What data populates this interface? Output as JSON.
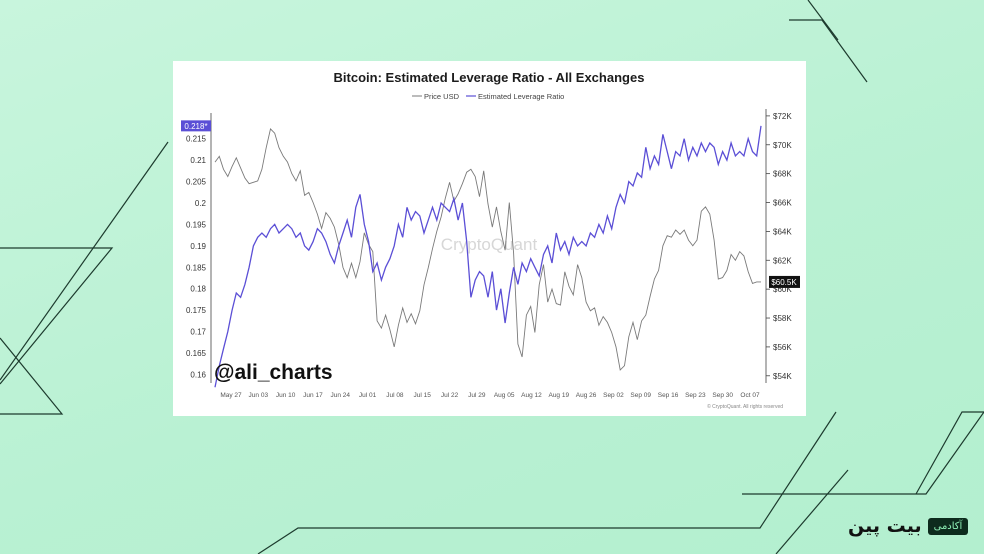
{
  "chart_data": {
    "type": "line",
    "title": "Bitcoin: Estimated Leverage Ratio - All Exchanges",
    "legend": [
      "Price USD",
      "Estimated Leverage Ratio"
    ],
    "legend_position": "top-center",
    "x_labels": [
      "May 27",
      "Jun 03",
      "Jun 10",
      "Jun 17",
      "Jun 24",
      "Jul 01",
      "Jul 08",
      "Jul 15",
      "Jul 22",
      "Jul 29",
      "Aug 05",
      "Aug 12",
      "Aug 19",
      "Aug 26",
      "Sep 02",
      "Sep 09",
      "Sep 16",
      "Sep 23",
      "Sep 30",
      "Oct 07"
    ],
    "y_left": {
      "ticks": [
        "0.215",
        "0.21",
        "0.205",
        "0.2",
        "0.195",
        "0.19",
        "0.185",
        "0.18",
        "0.175",
        "0.17",
        "0.165",
        "0.16"
      ],
      "range": [
        0.158,
        0.221
      ],
      "current_label": "0.218*",
      "current_value": 0.218
    },
    "y_right": {
      "ticks": [
        "$72K",
        "$70K",
        "$68K",
        "$66K",
        "$64K",
        "$62K",
        "$60K",
        "$58K",
        "$56K",
        "$54K"
      ],
      "range": [
        53500,
        72200
      ],
      "current_label": "$60.5K",
      "current_value": 60500
    },
    "grid": false,
    "series": [
      {
        "name": "Estimated Leverage Ratio",
        "color": "#5b4fd6",
        "axis": "left",
        "values": [
          0.157,
          0.162,
          0.166,
          0.17,
          0.175,
          0.179,
          0.178,
          0.181,
          0.185,
          0.19,
          0.192,
          0.193,
          0.192,
          0.194,
          0.195,
          0.193,
          0.194,
          0.195,
          0.194,
          0.192,
          0.193,
          0.19,
          0.189,
          0.191,
          0.194,
          0.193,
          0.191,
          0.188,
          0.186,
          0.19,
          0.193,
          0.196,
          0.192,
          0.199,
          0.202,
          0.195,
          0.191,
          0.184,
          0.186,
          0.182,
          0.185,
          0.187,
          0.19,
          0.195,
          0.192,
          0.199,
          0.196,
          0.198,
          0.197,
          0.193,
          0.196,
          0.199,
          0.196,
          0.2,
          0.199,
          0.198,
          0.201,
          0.196,
          0.2,
          0.191,
          0.178,
          0.182,
          0.184,
          0.183,
          0.178,
          0.184,
          0.175,
          0.18,
          0.172,
          0.179,
          0.185,
          0.181,
          0.186,
          0.184,
          0.187,
          0.185,
          0.183,
          0.188,
          0.19,
          0.186,
          0.193,
          0.189,
          0.191,
          0.188,
          0.192,
          0.19,
          0.191,
          0.19,
          0.193,
          0.192,
          0.195,
          0.193,
          0.197,
          0.194,
          0.199,
          0.202,
          0.2,
          0.205,
          0.204,
          0.207,
          0.206,
          0.213,
          0.208,
          0.211,
          0.209,
          0.216,
          0.212,
          0.208,
          0.212,
          0.211,
          0.215,
          0.21,
          0.213,
          0.211,
          0.214,
          0.212,
          0.214,
          0.213,
          0.209,
          0.212,
          0.21,
          0.214,
          0.211,
          0.212,
          0.211,
          0.215,
          0.212,
          0.211,
          0.218
        ]
      },
      {
        "name": "Price USD",
        "color": "#7a7a7a",
        "axis": "right",
        "values": [
          68800,
          69200,
          68300,
          67800,
          68500,
          69100,
          68400,
          67700,
          67300,
          67400,
          67500,
          68300,
          69800,
          71100,
          70800,
          69800,
          69200,
          68800,
          68000,
          67500,
          68200,
          66500,
          66700,
          66000,
          65200,
          64200,
          65300,
          64900,
          64300,
          63100,
          61500,
          60800,
          61800,
          60800,
          61900,
          63900,
          63100,
          62600,
          57800,
          57300,
          58200,
          57200,
          56000,
          57500,
          58700,
          57700,
          58300,
          57600,
          58500,
          60300,
          61500,
          62800,
          64000,
          65000,
          66300,
          67400,
          66100,
          66600,
          67300,
          68100,
          68300,
          67800,
          66400,
          68200,
          65900,
          64300,
          65700,
          64000,
          62700,
          66000,
          62500,
          56200,
          55300,
          58200,
          58800,
          57000,
          60300,
          61700,
          59100,
          60000,
          59000,
          58900,
          61200,
          60200,
          59600,
          61700,
          60800,
          59100,
          58500,
          58700,
          57500,
          58100,
          57700,
          57000,
          56000,
          54400,
          54700,
          56700,
          57700,
          56500,
          57800,
          58200,
          59500,
          60700,
          61300,
          63000,
          63700,
          63600,
          64100,
          63800,
          64100,
          63400,
          63000,
          63400,
          65400,
          65700,
          65200,
          63400,
          60700,
          60800,
          61300,
          62400,
          62000,
          62600,
          62300,
          61200,
          60400,
          60500,
          60500
        ]
      }
    ]
  },
  "watermark": "CryptoQuant",
  "credit": "© CryptoQuant. All rights reserved",
  "handle": "@ali_charts",
  "brand": {
    "name": "بیت پین",
    "badge": "آکادمی"
  }
}
